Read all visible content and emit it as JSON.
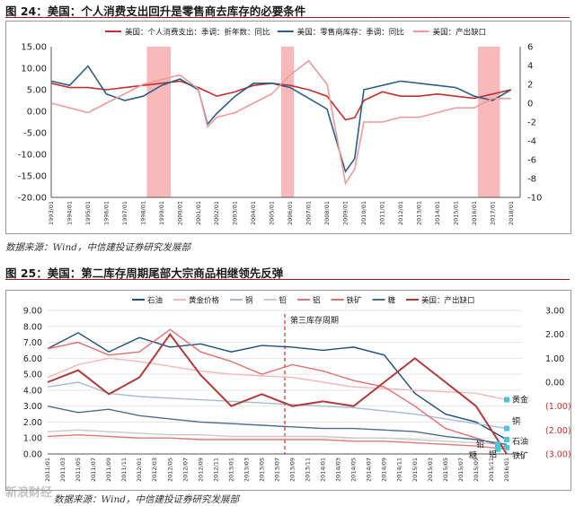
{
  "figure24": {
    "title": "图 24：美国：个人消费支出回升是零售商去库存的必要条件",
    "source": "数据来源：Wind，中信建投证券研究发展部"
  },
  "figure25": {
    "title": "图 25：美国：第二库存周期尾部大宗商品相继领先反弹",
    "source": "数据来源：Wind，中信建投证券研究发展部"
  },
  "watermark": "新浪财经",
  "chart_data": [
    {
      "type": "line",
      "legend": [
        "美国：个人消费支出：季调：折年数：同比",
        "美国：零售商库存：季调：同比",
        "美国：产出缺口"
      ],
      "legend_placement": "top",
      "colors": [
        "#c0302c",
        "#2d5e86",
        "#ef9a9a"
      ],
      "shade_color": "#f7b9b9",
      "y_left_ticks": [
        "15.00",
        "10.00",
        "5.00",
        "0.00",
        "-5.00",
        "-10.00",
        "-15.00",
        "-20.00"
      ],
      "y_right_ticks": [
        "6",
        "4",
        "2",
        "0",
        "-2",
        "-4",
        "-6",
        "-8",
        "-10"
      ],
      "ylim_left": [
        -20,
        15
      ],
      "ylim_right": [
        -10,
        6
      ],
      "x_tick_labels": [
        "1993/01",
        "1994/01",
        "1995/01",
        "1996/01",
        "1997/01",
        "1998/01",
        "1999/01",
        "2000/01",
        "2001/01",
        "2002/01",
        "2003/01",
        "2004/01",
        "2005/01",
        "2006/01",
        "2007/01",
        "2008/01",
        "2009/01",
        "2010/01",
        "2011/01",
        "2012/01",
        "2013/01",
        "2014/01",
        "2015/01",
        "2016/01",
        "2017/01",
        "2018/01"
      ],
      "shaded_periods": [
        [
          1998.2,
          1999.5
        ],
        [
          2005.5,
          2006.2
        ],
        [
          2016.2,
          2017.4
        ]
      ],
      "x": [
        1993.0,
        1994.0,
        1995.0,
        1996.0,
        1997.0,
        1998.0,
        1999.0,
        2000.0,
        2001.0,
        2001.5,
        2002.0,
        2003.0,
        2004.0,
        2005.0,
        2006.0,
        2007.0,
        2008.0,
        2009.0,
        2009.5,
        2010.0,
        2011.0,
        2012.0,
        2013.0,
        2014.0,
        2015.0,
        2016.0,
        2017.0,
        2018.0
      ],
      "series": [
        {
          "name": "美国：个人消费支出：季调：折年数：同比",
          "axis": "left",
          "values": [
            6.5,
            5.5,
            5.5,
            5.0,
            5.5,
            6.0,
            6.5,
            7.0,
            5.5,
            4.5,
            3.5,
            4.5,
            6.0,
            6.5,
            6.0,
            5.0,
            3.5,
            -2.0,
            -1.5,
            2.5,
            4.5,
            3.5,
            3.5,
            4.0,
            3.5,
            3.0,
            4.0,
            5.0
          ]
        },
        {
          "name": "美国：零售商库存：季调：同比",
          "axis": "left",
          "values": [
            7.0,
            6.0,
            10.5,
            4.0,
            2.5,
            3.5,
            6.0,
            7.5,
            5.0,
            -3.0,
            -0.5,
            3.5,
            6.5,
            6.5,
            5.5,
            3.0,
            0.5,
            -14.0,
            -11.0,
            5.0,
            6.0,
            7.0,
            6.5,
            6.0,
            5.5,
            3.5,
            2.5,
            5.0
          ]
        },
        {
          "name": "美国：产出缺口",
          "axis": "right",
          "values": [
            0.0,
            -0.5,
            -1.0,
            0.0,
            1.0,
            2.0,
            2.5,
            3.0,
            1.5,
            -2.5,
            -1.5,
            -1.0,
            0.0,
            1.0,
            3.0,
            4.5,
            2.0,
            -8.5,
            -7.0,
            -2.0,
            -2.0,
            -1.5,
            -1.5,
            -1.0,
            -0.5,
            -0.5,
            0.5,
            0.5
          ]
        }
      ]
    },
    {
      "type": "line",
      "legend": [
        "石油",
        "黄金价格",
        "铜",
        "铅",
        "铝",
        "铁矿",
        "糖",
        "美国：产出缺口"
      ],
      "legend_placement": "top",
      "colors": [
        "#1f4e79",
        "#f2b8b8",
        "#a6bcd4",
        "#c9c9c9",
        "#d97b7b",
        "#e07070",
        "#4a6d8c",
        "#b03a3a"
      ],
      "y_left_ticks": [
        "9.00",
        "8.00",
        "7.00",
        "6.00",
        "5.00",
        "4.00",
        "3.00",
        "2.00",
        "1.00",
        "0.00"
      ],
      "y_right_ticks": [
        "3.00",
        "2.00",
        "1.00",
        "0.00",
        "(1.00)",
        "(2.00)",
        "(3.00)"
      ],
      "ylim_left": [
        0,
        9
      ],
      "ylim_right": [
        -3,
        3
      ],
      "annotation": "第三库存周期",
      "cycle_line_x": 31,
      "end_labels": [
        "黄金",
        "铜",
        "石油",
        "铁矿",
        "铅",
        "铝",
        "糖"
      ],
      "x_tick_labels": [
        "2011/01",
        "2011/03",
        "2011/05",
        "2011/07",
        "2011/09",
        "2011/11",
        "2012/01",
        "2012/03",
        "2012/05",
        "2012/07",
        "2012/09",
        "2012/11",
        "2013/01",
        "2013/03",
        "2013/05",
        "2013/07",
        "2013/09",
        "2013/11",
        "2014/01",
        "2014/03",
        "2014/05",
        "2014/07",
        "2014/09",
        "2014/11",
        "2015/01",
        "2015/03",
        "2015/05",
        "2015/07",
        "2015/09",
        "2015/11",
        "2016/01"
      ],
      "x": [
        0,
        4,
        8,
        12,
        16,
        20,
        24,
        28,
        32,
        36,
        40,
        44,
        48,
        52,
        56,
        60
      ],
      "series": [
        {
          "name": "石油",
          "axis": "left",
          "values": [
            6.6,
            7.6,
            6.4,
            7.3,
            6.7,
            6.9,
            6.4,
            6.8,
            6.7,
            6.5,
            6.7,
            6.2,
            3.8,
            2.5,
            2.0,
            0.9
          ]
        },
        {
          "name": "黄金价格",
          "axis": "left",
          "values": [
            4.8,
            5.6,
            6.0,
            5.8,
            5.5,
            5.2,
            5.0,
            4.9,
            4.8,
            4.5,
            4.2,
            4.1,
            4.0,
            3.9,
            3.8,
            3.4
          ]
        },
        {
          "name": "铜",
          "axis": "left",
          "values": [
            4.2,
            4.5,
            3.8,
            3.6,
            3.5,
            3.4,
            3.3,
            3.2,
            3.1,
            3.0,
            2.9,
            2.7,
            2.5,
            2.2,
            1.9,
            1.6
          ]
        },
        {
          "name": "铅",
          "axis": "left",
          "values": [
            1.4,
            1.5,
            1.4,
            1.3,
            1.2,
            1.2,
            1.1,
            1.1,
            1.1,
            1.1,
            1.0,
            1.0,
            0.9,
            0.8,
            0.7,
            0.6
          ]
        },
        {
          "name": "铝",
          "axis": "left",
          "values": [
            1.1,
            1.2,
            1.1,
            1.0,
            1.0,
            0.9,
            0.9,
            0.9,
            0.9,
            0.9,
            0.8,
            0.8,
            0.7,
            0.6,
            0.5,
            0.3
          ]
        },
        {
          "name": "铁矿",
          "axis": "left",
          "values": [
            6.6,
            7.0,
            6.2,
            6.4,
            7.8,
            6.4,
            5.8,
            5.0,
            5.6,
            5.2,
            4.6,
            4.2,
            3.0,
            1.6,
            1.0,
            0.4
          ]
        },
        {
          "name": "糖",
          "axis": "left",
          "values": [
            3.0,
            2.6,
            2.8,
            2.4,
            2.2,
            2.0,
            1.9,
            1.8,
            1.7,
            1.6,
            1.6,
            1.5,
            1.4,
            1.1,
            0.9,
            0.6
          ]
        },
        {
          "name": "美国：产出缺口",
          "axis": "right",
          "values": [
            0.0,
            0.5,
            -0.5,
            0.2,
            2.0,
            0.3,
            -1.0,
            -0.5,
            -1.0,
            -0.8,
            -1.0,
            0.0,
            1.0,
            0.0,
            -1.0,
            -3.0
          ]
        }
      ]
    }
  ]
}
